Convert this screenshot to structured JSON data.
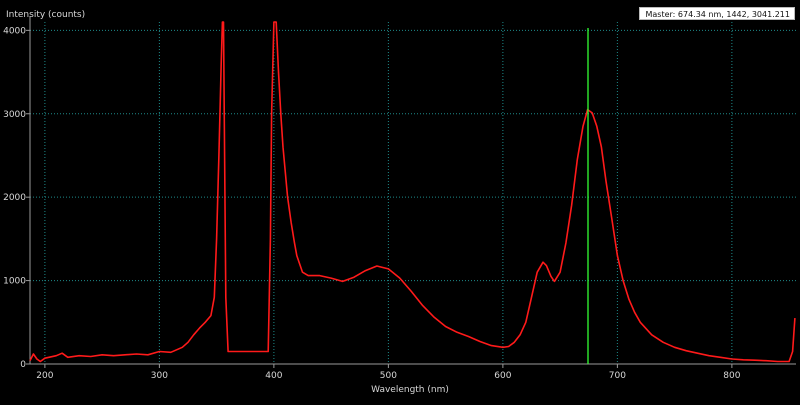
{
  "readout": {
    "text": "Master: 674.34 nm, 1442, 3041.211"
  },
  "colors": {
    "background": "#000000",
    "grid": "#1e8a8a",
    "axis": "#9a9a9a",
    "series": "#ff1a1a",
    "marker": "#33ff33",
    "text": "#d8d8d8"
  },
  "chart_data": {
    "type": "line",
    "title": "",
    "xlabel": "Wavelength (nm)",
    "ylabel": "Intensity (counts)",
    "xlim": [
      187,
      856
    ],
    "ylim": [
      0,
      4100
    ],
    "xticks": [
      200,
      300,
      400,
      500,
      600,
      700,
      800
    ],
    "yticks": [
      0,
      1000,
      2000,
      3000,
      4000
    ],
    "grid": true,
    "marker_x": 674.34,
    "series": [
      {
        "values": [
          [
            187,
            40
          ],
          [
            190,
            120
          ],
          [
            193,
            60
          ],
          [
            196,
            30
          ],
          [
            200,
            70
          ],
          [
            210,
            100
          ],
          [
            215,
            130
          ],
          [
            220,
            80
          ],
          [
            230,
            100
          ],
          [
            240,
            90
          ],
          [
            250,
            110
          ],
          [
            260,
            100
          ],
          [
            270,
            110
          ],
          [
            280,
            120
          ],
          [
            290,
            110
          ],
          [
            300,
            150
          ],
          [
            310,
            140
          ],
          [
            315,
            170
          ],
          [
            320,
            200
          ],
          [
            325,
            260
          ],
          [
            330,
            350
          ],
          [
            335,
            430
          ],
          [
            340,
            500
          ],
          [
            345,
            580
          ],
          [
            348,
            800
          ],
          [
            350,
            1500
          ],
          [
            352,
            2500
          ],
          [
            354,
            3600
          ],
          [
            355,
            4100
          ],
          [
            356,
            4100
          ],
          [
            357,
            2500
          ],
          [
            358,
            800
          ],
          [
            360,
            150
          ],
          [
            360,
            150
          ],
          [
            395,
            150
          ],
          [
            397,
            1500
          ],
          [
            398,
            3000
          ],
          [
            400,
            4100
          ],
          [
            402,
            4100
          ],
          [
            404,
            3500
          ],
          [
            406,
            3000
          ],
          [
            408,
            2600
          ],
          [
            410,
            2300
          ],
          [
            412,
            2000
          ],
          [
            415,
            1700
          ],
          [
            418,
            1450
          ],
          [
            420,
            1300
          ],
          [
            425,
            1100
          ],
          [
            430,
            1060
          ],
          [
            440,
            1060
          ],
          [
            450,
            1030
          ],
          [
            460,
            990
          ],
          [
            470,
            1040
          ],
          [
            480,
            1120
          ],
          [
            490,
            1175
          ],
          [
            500,
            1140
          ],
          [
            510,
            1030
          ],
          [
            520,
            870
          ],
          [
            530,
            700
          ],
          [
            540,
            560
          ],
          [
            550,
            450
          ],
          [
            560,
            380
          ],
          [
            570,
            330
          ],
          [
            580,
            270
          ],
          [
            590,
            220
          ],
          [
            600,
            200
          ],
          [
            605,
            210
          ],
          [
            610,
            260
          ],
          [
            615,
            350
          ],
          [
            620,
            500
          ],
          [
            625,
            800
          ],
          [
            630,
            1100
          ],
          [
            635,
            1220
          ],
          [
            638,
            1180
          ],
          [
            642,
            1050
          ],
          [
            645,
            990
          ],
          [
            650,
            1100
          ],
          [
            655,
            1450
          ],
          [
            660,
            1900
          ],
          [
            665,
            2450
          ],
          [
            670,
            2850
          ],
          [
            674,
            3050
          ],
          [
            678,
            3010
          ],
          [
            682,
            2850
          ],
          [
            686,
            2600
          ],
          [
            690,
            2200
          ],
          [
            695,
            1750
          ],
          [
            700,
            1300
          ],
          [
            705,
            1000
          ],
          [
            710,
            780
          ],
          [
            715,
            620
          ],
          [
            720,
            500
          ],
          [
            730,
            350
          ],
          [
            740,
            260
          ],
          [
            750,
            200
          ],
          [
            760,
            160
          ],
          [
            770,
            130
          ],
          [
            780,
            100
          ],
          [
            790,
            80
          ],
          [
            800,
            60
          ],
          [
            810,
            50
          ],
          [
            820,
            45
          ],
          [
            830,
            40
          ],
          [
            840,
            30
          ],
          [
            850,
            30
          ],
          [
            853,
            150
          ],
          [
            855,
            550
          ]
        ]
      }
    ]
  }
}
